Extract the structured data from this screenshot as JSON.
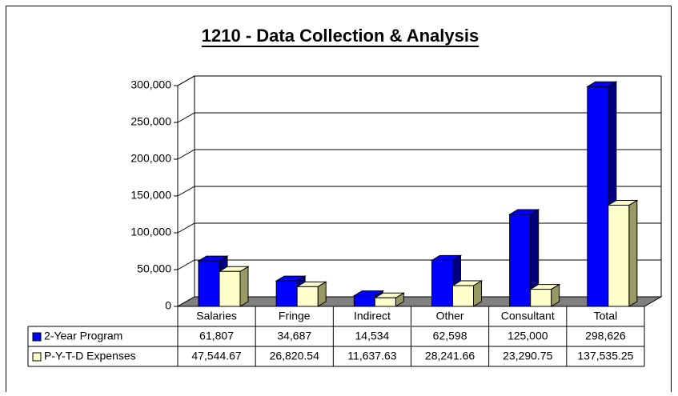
{
  "chart_data": {
    "type": "bar3d",
    "title": "1210 - Data Collection & Analysis",
    "categories": [
      "Salaries",
      "Fringe",
      "Indirect",
      "Other",
      "Consultant",
      "Total"
    ],
    "series": [
      {
        "name": "2-Year Program",
        "color": "#0000ff",
        "side_color": "#000080",
        "values": [
          61807,
          34687,
          14534,
          62598,
          125000,
          298626
        ],
        "value_labels": [
          "61,807",
          "34,687",
          "14,534",
          "62,598",
          "125,000",
          "298,626"
        ]
      },
      {
        "name": "P-Y-T-D Expenses",
        "color": "#ffffcc",
        "side_color": "#999966",
        "values": [
          47544.67,
          26820.54,
          11637.63,
          28241.66,
          23290.75,
          137535.25
        ],
        "value_labels": [
          "47,544.67",
          "26,820.54",
          "11,637.63",
          "28,241.66",
          "23,290.75",
          "137,535.25"
        ]
      }
    ],
    "ylim": [
      0,
      300000
    ],
    "yticks": [
      0,
      {
        "value": 50000,
        "label": "50,000"
      },
      {
        "value": 100000,
        "label": "100,000"
      },
      {
        "value": 150000,
        "label": "150,000"
      },
      {
        "value": 200000,
        "label": "200,000"
      },
      {
        "value": 250000,
        "label": "250,000"
      },
      {
        "value": 300000,
        "label": "300,000"
      }
    ],
    "grid": true
  }
}
